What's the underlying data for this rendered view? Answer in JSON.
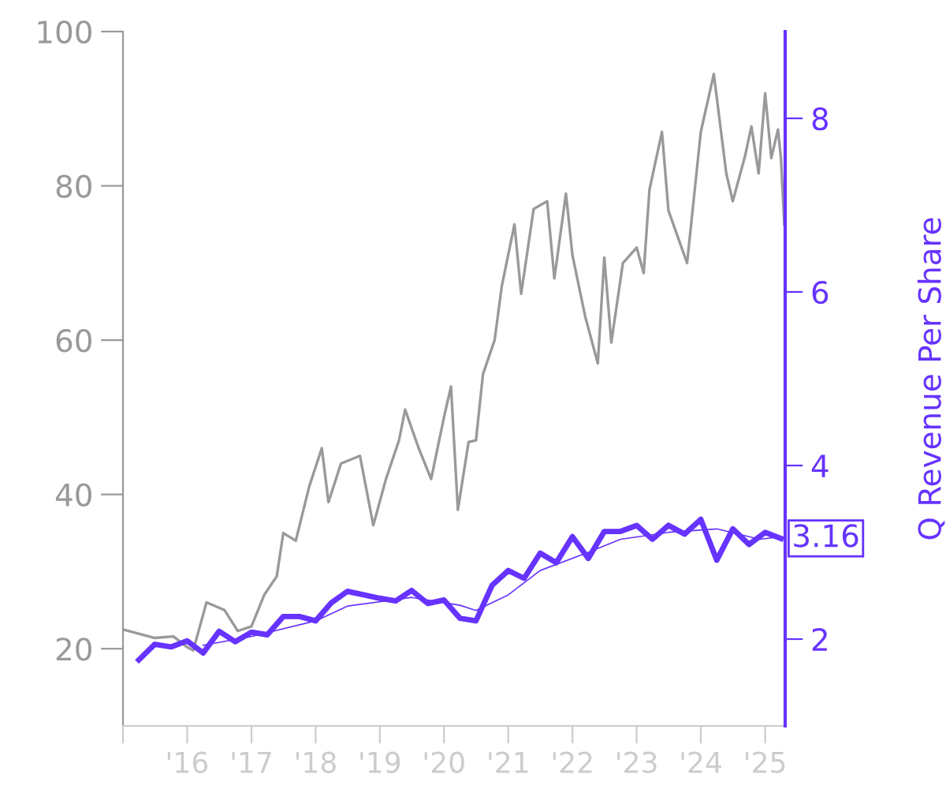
{
  "chart_data": {
    "type": "line",
    "y2label": "Q Revenue Per Share",
    "xlim": [
      "2015-01-01",
      "2025-04-25"
    ],
    "xticks": [
      {
        "value": "2015-01-01",
        "label": null
      },
      {
        "value": "2016-01-01",
        "label": "'16"
      },
      {
        "value": "2017-01-01",
        "label": "'17"
      },
      {
        "value": "2018-01-01",
        "label": "'18"
      },
      {
        "value": "2019-01-01",
        "label": "'19"
      },
      {
        "value": "2020-01-01",
        "label": "'20"
      },
      {
        "value": "2021-01-01",
        "label": "'21"
      },
      {
        "value": "2022-01-01",
        "label": "'22"
      },
      {
        "value": "2023-01-01",
        "label": "'23"
      },
      {
        "value": "2024-01-01",
        "label": "'24"
      },
      {
        "value": "2025-01-01",
        "label": "'25"
      }
    ],
    "ylim": [
      10,
      100
    ],
    "yticks": [
      20,
      40,
      60,
      80,
      100
    ],
    "y2lim": [
      1,
      9
    ],
    "y2ticks": [
      2,
      4,
      6,
      8
    ],
    "grid": false,
    "legend": false,
    "series": [
      {
        "color": "#999999",
        "x": [
          "2015-01-01",
          "2015-07-01",
          "2015-10-15",
          "2016-01-01",
          "2016-02-05",
          "2016-04-20",
          "2016-08-01",
          "2016-10-15",
          "2017-01-01",
          "2017-03-15",
          "2017-05-25",
          "2017-07-01",
          "2017-09-10",
          "2017-11-25",
          "2018-02-05",
          "2018-03-15",
          "2018-05-25",
          "2018-09-10",
          "2018-11-25",
          "2019-02-05",
          "2019-04-20",
          "2019-05-25",
          "2019-08-10",
          "2019-10-20",
          "2020-01-01",
          "2020-02-10",
          "2020-03-20",
          "2020-05-20",
          "2020-07-01",
          "2020-08-10",
          "2020-10-15",
          "2020-11-25",
          "2021-02-05",
          "2021-03-15",
          "2021-05-25",
          "2021-08-10",
          "2021-09-20",
          "2021-11-25",
          "2022-01-01",
          "2022-03-15",
          "2022-05-25",
          "2022-07-01",
          "2022-08-10",
          "2022-10-15",
          "2023-01-01",
          "2023-02-10",
          "2023-03-15",
          "2023-05-25",
          "2023-07-01",
          "2023-10-15",
          "2024-01-01",
          "2024-03-15",
          "2024-05-25",
          "2024-07-01",
          "2024-09-10",
          "2024-10-15",
          "2024-11-25",
          "2025-01-01",
          "2025-02-05",
          "2025-03-15",
          "2025-04-01",
          "2025-04-20"
        ],
        "values": [
          22.5,
          21.4,
          21.6,
          20.2,
          19.8,
          26,
          25,
          22.3,
          22.9,
          27,
          29.4,
          35,
          34,
          41,
          46,
          39,
          44,
          45,
          36,
          42,
          47,
          51,
          46,
          42,
          50,
          54,
          38,
          46.8,
          47,
          55.6,
          60,
          67,
          75,
          66,
          77,
          78,
          68,
          79,
          71,
          63,
          57,
          70.7,
          59.7,
          70,
          72,
          68.7,
          79.5,
          87,
          76.8,
          70,
          87,
          94.5,
          81.6,
          78,
          84,
          87.7,
          81.6,
          92,
          83.6,
          87.3,
          83.6,
          75
        ]
      },
      {
        "color": "#6633ff",
        "axis": "y2",
        "x": [
          "2015-04-01",
          "2015-07-01",
          "2015-10-01",
          "2016-01-01",
          "2016-04-01",
          "2016-07-01",
          "2016-10-01",
          "2017-01-01",
          "2017-04-01",
          "2017-07-01",
          "2017-10-01",
          "2018-01-01",
          "2018-04-01",
          "2018-07-01",
          "2018-10-01",
          "2019-01-01",
          "2019-04-01",
          "2019-07-01",
          "2019-10-01",
          "2020-01-01",
          "2020-04-01",
          "2020-07-01",
          "2020-10-01",
          "2021-01-01",
          "2021-04-01",
          "2021-07-01",
          "2021-10-01",
          "2022-01-01",
          "2022-04-01",
          "2022-07-01",
          "2022-10-01",
          "2023-01-01",
          "2023-04-01",
          "2023-07-01",
          "2023-10-01",
          "2024-01-01",
          "2024-04-01",
          "2024-07-01",
          "2024-10-01",
          "2025-01-01",
          "2025-04-01"
        ],
        "values": [
          1.76,
          1.94,
          1.91,
          1.98,
          1.84,
          2.09,
          1.97,
          2.08,
          2.05,
          2.26,
          2.26,
          2.21,
          2.42,
          2.55,
          2.51,
          2.47,
          2.44,
          2.56,
          2.41,
          2.45,
          2.24,
          2.21,
          2.62,
          2.79,
          2.7,
          2.99,
          2.88,
          3.18,
          2.93,
          3.24,
          3.24,
          3.31,
          3.15,
          3.31,
          3.21,
          3.38,
          2.91,
          3.27,
          3.09,
          3.23,
          3.16
        ]
      },
      {
        "color": "#6633ff",
        "axis": "y2",
        "x": [
          "2016-04-01",
          "2017-01-01",
          "2018-01-01",
          "2018-07-01",
          "2019-07-01",
          "2020-04-01",
          "2020-07-01",
          "2021-01-01",
          "2021-07-01",
          "2022-04-01",
          "2022-10-01",
          "2023-07-01",
          "2024-04-01",
          "2024-12-01",
          "2025-04-01"
        ],
        "values": [
          1.93,
          2.03,
          2.21,
          2.38,
          2.48,
          2.39,
          2.33,
          2.51,
          2.79,
          3.0,
          3.15,
          3.23,
          3.27,
          3.15,
          3.18
        ]
      }
    ],
    "annotations": [
      "3.16"
    ]
  }
}
